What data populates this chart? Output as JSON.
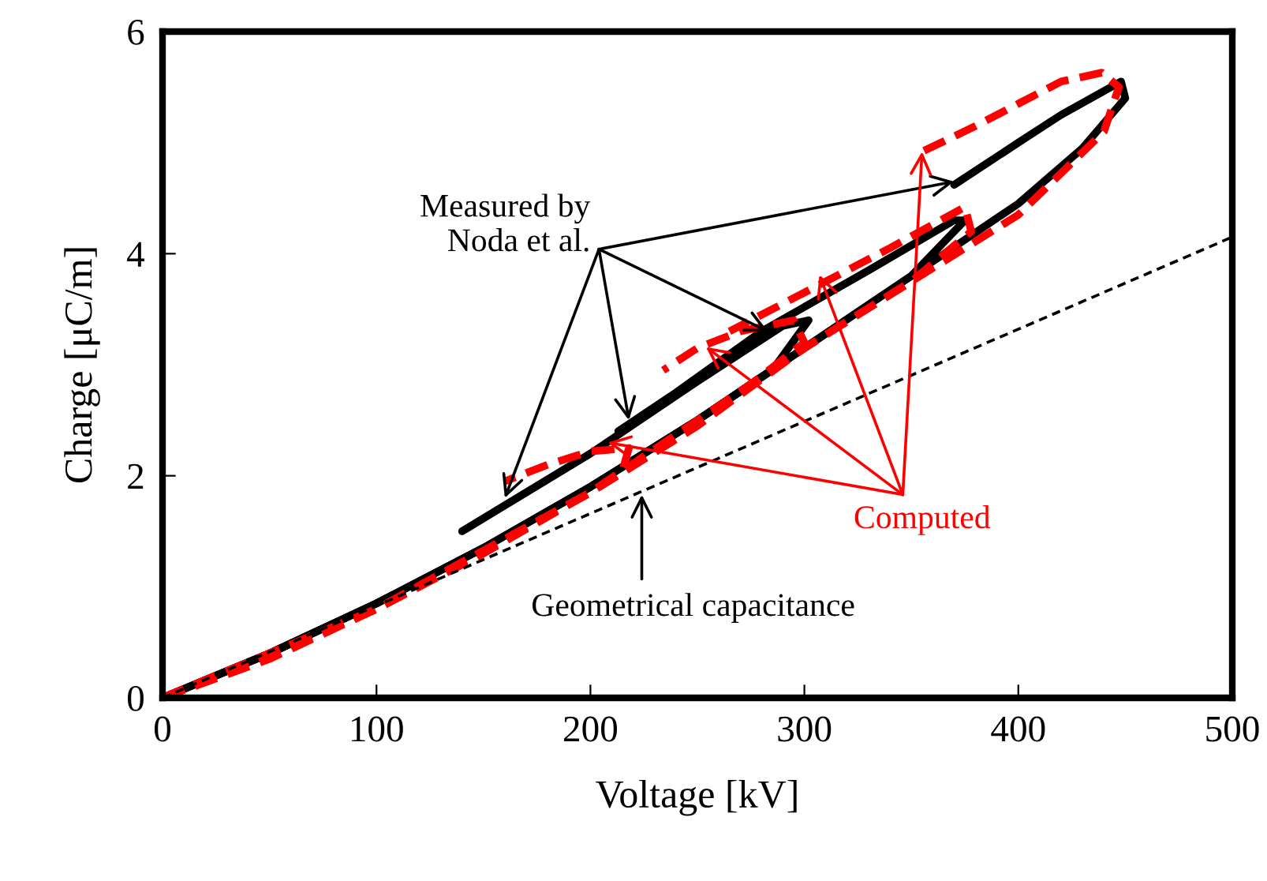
{
  "chart_data": {
    "type": "line",
    "xlabel": "Voltage [kV]",
    "ylabel": "Charge [μC/m]",
    "xlim": [
      0,
      500
    ],
    "ylim": [
      0,
      6
    ],
    "xticks": [
      0,
      100,
      200,
      300,
      400,
      500
    ],
    "yticks": [
      0,
      2,
      4,
      6
    ],
    "grid": false,
    "legend": false,
    "marker": "none",
    "series": [
      {
        "color": "#000000",
        "line_style": "solid",
        "x": [
          0,
          50,
          100,
          150,
          200,
          250,
          285,
          302,
          290,
          250,
          200,
          170,
          140
        ],
        "values": [
          0,
          0.4,
          0.85,
          1.35,
          1.9,
          2.5,
          2.95,
          3.4,
          3.35,
          2.85,
          2.2,
          1.85,
          1.5
        ]
      },
      {
        "color": "#000000",
        "line_style": "solid",
        "x": [
          0,
          50,
          100,
          150,
          200,
          250,
          300,
          350,
          375,
          370,
          330,
          280,
          240,
          213
        ],
        "values": [
          0,
          0.4,
          0.85,
          1.35,
          1.9,
          2.5,
          3.15,
          3.8,
          4.3,
          4.3,
          3.85,
          3.3,
          2.75,
          2.4
        ]
      },
      {
        "color": "#000000",
        "line_style": "solid",
        "x": [
          0,
          50,
          100,
          150,
          200,
          250,
          300,
          350,
          400,
          430,
          450,
          448,
          420,
          400,
          370
        ],
        "values": [
          0,
          0.4,
          0.85,
          1.35,
          1.9,
          2.5,
          3.15,
          3.8,
          4.45,
          4.95,
          5.4,
          5.55,
          5.25,
          5.0,
          4.62
        ]
      },
      {
        "color": "#ff0000",
        "line_style": "dashed",
        "x": [
          0,
          50,
          100,
          150,
          200,
          215,
          218,
          200,
          180,
          160
        ],
        "values": [
          0,
          0.35,
          0.8,
          1.3,
          1.85,
          2.05,
          2.25,
          2.22,
          2.1,
          1.95
        ]
      },
      {
        "color": "#ff0000",
        "line_style": "dashed",
        "x": [
          0,
          100,
          200,
          250,
          300,
          295,
          270,
          250,
          234
        ],
        "values": [
          0,
          0.8,
          1.85,
          2.45,
          3.2,
          3.4,
          3.3,
          3.15,
          2.95
        ]
      },
      {
        "color": "#ff0000",
        "line_style": "dashed",
        "x": [
          0,
          100,
          200,
          250,
          300,
          350,
          378,
          375,
          340,
          300,
          265
        ],
        "values": [
          0,
          0.8,
          1.85,
          2.45,
          3.15,
          3.75,
          4.2,
          4.42,
          4.05,
          3.65,
          3.3
        ]
      },
      {
        "color": "#ff0000",
        "line_style": "dashed",
        "x": [
          0,
          100,
          200,
          300,
          350,
          400,
          440,
          447,
          439,
          420,
          400,
          380,
          352
        ],
        "values": [
          0,
          0.8,
          1.85,
          3.15,
          3.75,
          4.35,
          5.1,
          5.5,
          5.63,
          5.55,
          5.35,
          5.15,
          4.89
        ]
      },
      {
        "color": "#000000",
        "line_style": "dotted",
        "x": [
          0,
          500
        ],
        "values": [
          0,
          4.15
        ]
      }
    ],
    "annotations": [
      {
        "text": "Measured by\nNoda et al.",
        "x": 160,
        "y": 1.8
      },
      {
        "text": "Computed",
        "x": 208,
        "y": 2.3
      },
      {
        "text": "Geometrical capacitance",
        "x": 224,
        "y": 1.83
      }
    ]
  }
}
